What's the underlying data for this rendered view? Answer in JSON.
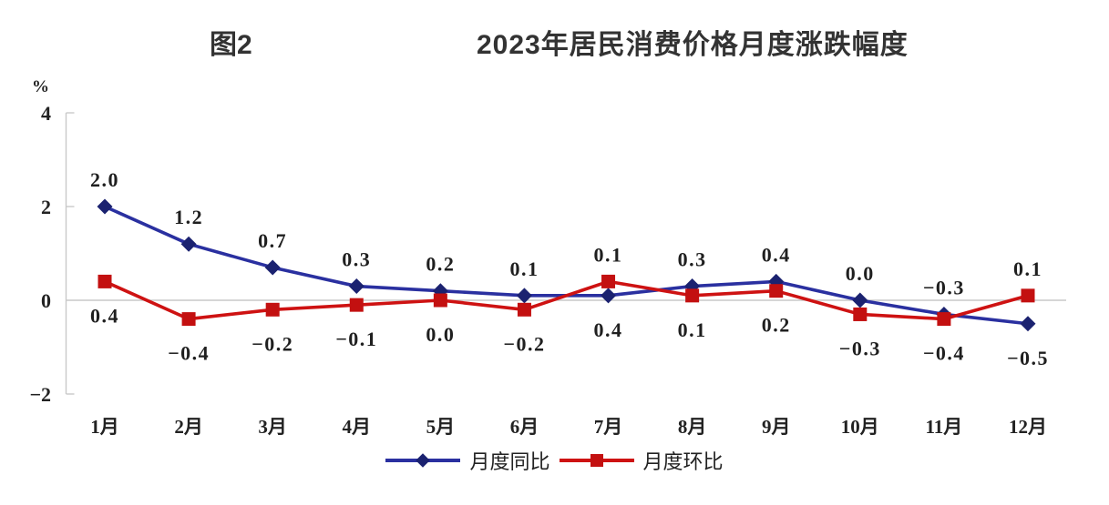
{
  "header": {
    "figure_label": "图2",
    "title": "2023年居民消费价格月度涨跌幅度"
  },
  "chart_data": {
    "type": "line",
    "title": "2023年居民消费价格月度涨跌幅度",
    "unit_label": "%",
    "categories": [
      "1月",
      "2月",
      "3月",
      "4月",
      "5月",
      "6月",
      "7月",
      "8月",
      "9月",
      "10月",
      "11月",
      "12月"
    ],
    "y_ticks": [
      4,
      2,
      0,
      -2
    ],
    "y_tick_labels": [
      "4",
      "2",
      "0",
      "−2"
    ],
    "ylim": [
      -2,
      4
    ],
    "grid": "zero-line-only",
    "legend_position": "bottom-center",
    "series": [
      {
        "name": "月度同比",
        "marker": "diamond",
        "color": "#2A30A0",
        "marker_color": "#1B2270",
        "values": [
          2.0,
          1.2,
          0.7,
          0.3,
          0.2,
          0.1,
          0.1,
          0.3,
          0.4,
          0.0,
          -0.3,
          -0.5
        ]
      },
      {
        "name": "月度环比",
        "marker": "square",
        "color": "#CE1212",
        "marker_color": "#C31010",
        "values": [
          0.4,
          -0.4,
          -0.2,
          -0.1,
          0.0,
          -0.2,
          0.4,
          0.1,
          0.2,
          -0.3,
          -0.4,
          0.1
        ]
      }
    ],
    "point_labels_top": [
      "2.0",
      "1.2",
      "0.7",
      "0.3",
      "0.2",
      "0.1",
      "0.1",
      "0.3",
      "0.4",
      "0.0",
      "−0.3",
      "0.1"
    ],
    "point_labels_bottom": [
      "0.4",
      "−0.4",
      "−0.2",
      "−0.1",
      "0.0",
      "−0.2",
      "0.4",
      "0.1",
      "0.2",
      "−0.3",
      "−0.4",
      "−0.5"
    ],
    "axis_color": "#c9c9c9",
    "label_color": "#1f1f1f"
  }
}
